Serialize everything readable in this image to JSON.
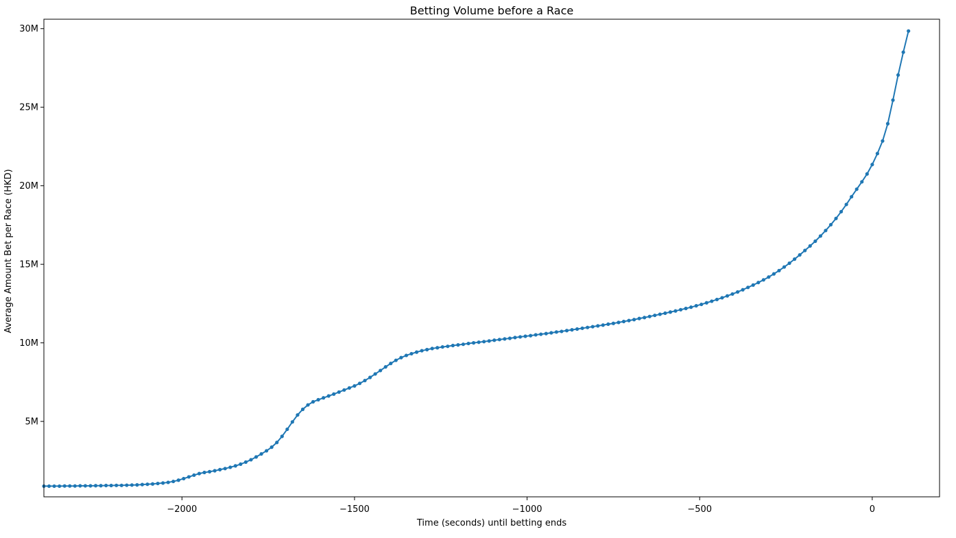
{
  "chart_data": {
    "type": "line",
    "title": "Betting Volume before a Race",
    "xlabel": "Time (seconds) until betting ends",
    "ylabel": "Average Amount Bet per Race (HKD)",
    "xlim": [
      -2400,
      195
    ],
    "ylim": [
      200000,
      30600000
    ],
    "x_ticks": [
      -2000,
      -1500,
      -1000,
      -500,
      0
    ],
    "x_tick_labels": [
      "−2000",
      "−1500",
      "−1000",
      "−500",
      "0"
    ],
    "y_ticks": [
      5000000,
      10000000,
      15000000,
      20000000,
      25000000,
      30000000
    ],
    "y_tick_labels": [
      "5M",
      "10M",
      "15M",
      "20M",
      "25M",
      "30M"
    ],
    "grid": false,
    "color": "#1f77b4",
    "series": [
      {
        "marker": "circle",
        "x_start": -2400,
        "x_step": 15,
        "values_millions": [
          0.88,
          0.88,
          0.88,
          0.88,
          0.89,
          0.89,
          0.89,
          0.9,
          0.9,
          0.9,
          0.91,
          0.91,
          0.92,
          0.92,
          0.93,
          0.93,
          0.94,
          0.95,
          0.96,
          0.98,
          1.0,
          1.02,
          1.05,
          1.08,
          1.12,
          1.18,
          1.26,
          1.36,
          1.47,
          1.58,
          1.68,
          1.75,
          1.8,
          1.86,
          1.93,
          2.0,
          2.08,
          2.17,
          2.28,
          2.41,
          2.56,
          2.74,
          2.93,
          3.13,
          3.36,
          3.66,
          4.05,
          4.5,
          4.97,
          5.41,
          5.77,
          6.05,
          6.25,
          6.38,
          6.5,
          6.62,
          6.74,
          6.87,
          7.0,
          7.13,
          7.26,
          7.42,
          7.6,
          7.8,
          8.02,
          8.24,
          8.47,
          8.69,
          8.89,
          9.06,
          9.2,
          9.31,
          9.41,
          9.5,
          9.57,
          9.64,
          9.69,
          9.74,
          9.78,
          9.83,
          9.87,
          9.91,
          9.96,
          10.0,
          10.04,
          10.08,
          10.12,
          10.17,
          10.21,
          10.25,
          10.29,
          10.34,
          10.38,
          10.42,
          10.46,
          10.51,
          10.55,
          10.59,
          10.64,
          10.69,
          10.73,
          10.78,
          10.83,
          10.88,
          10.93,
          10.98,
          11.03,
          11.08,
          11.13,
          11.19,
          11.24,
          11.3,
          11.36,
          11.42,
          11.48,
          11.55,
          11.61,
          11.68,
          11.75,
          11.82,
          11.89,
          11.96,
          12.03,
          12.11,
          12.19,
          12.27,
          12.36,
          12.45,
          12.55,
          12.65,
          12.76,
          12.87,
          12.99,
          13.11,
          13.24,
          13.38,
          13.53,
          13.68,
          13.84,
          14.01,
          14.19,
          14.39,
          14.6,
          14.83,
          15.07,
          15.33,
          15.6,
          15.88,
          16.17,
          16.47,
          16.8,
          17.15,
          17.52,
          17.92,
          18.35,
          18.81,
          19.3,
          19.78,
          20.25,
          20.75,
          21.35,
          22.05,
          22.85,
          23.95,
          25.45,
          27.05,
          28.5,
          29.85
        ]
      }
    ]
  }
}
